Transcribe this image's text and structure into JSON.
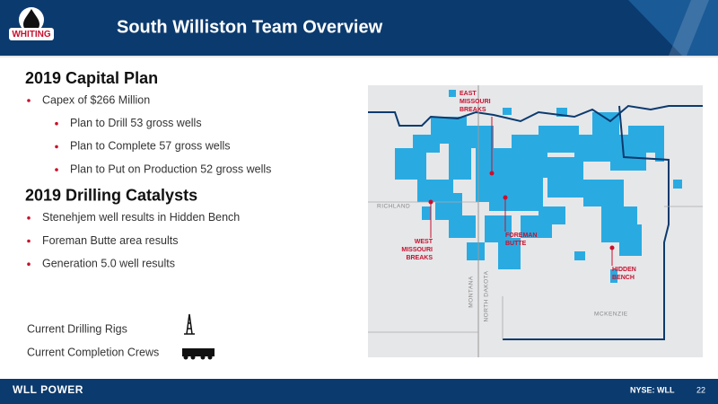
{
  "header": {
    "title": "South Williston Team Overview",
    "logo": "WHITING"
  },
  "sections": [
    {
      "heading": "2019 Capital Plan",
      "bullets": [
        {
          "text": "Capex of $266 Million",
          "level": 1
        },
        {
          "text": "Plan to Drill 53 gross wells",
          "level": 2
        },
        {
          "text": "Plan to Complete 57 gross wells",
          "level": 2
        },
        {
          "text": "Plan to Put on Production 52 gross wells",
          "level": 2
        }
      ]
    },
    {
      "heading": "2019 Drilling Catalysts",
      "bullets": [
        {
          "text": "Stenehjem well results in Hidden Bench",
          "level": 1
        },
        {
          "text": "Foreman Butte area results",
          "level": 1
        },
        {
          "text": "Generation 5.0 well results",
          "level": 1
        }
      ]
    }
  ],
  "resources": [
    "Current Drilling Rigs",
    "Current Completion Crews"
  ],
  "map": {
    "areas": [
      {
        "lines": [
          "EAST",
          "MISSOURI",
          "BREAKS"
        ]
      },
      {
        "lines": [
          "WEST",
          "MISSOURI",
          "BREAKS"
        ]
      },
      {
        "lines": [
          "FOREMAN",
          "BUTTE"
        ]
      },
      {
        "lines": [
          "HIDDEN",
          "BENCH"
        ]
      }
    ],
    "places": [
      "RICHLAND",
      "MONTANA",
      "NORTH DAKOTA",
      "MCKENZIE"
    ]
  },
  "footer": {
    "brand": "WLL POWER",
    "ticker": "NYSE: WLL",
    "page": "22"
  }
}
